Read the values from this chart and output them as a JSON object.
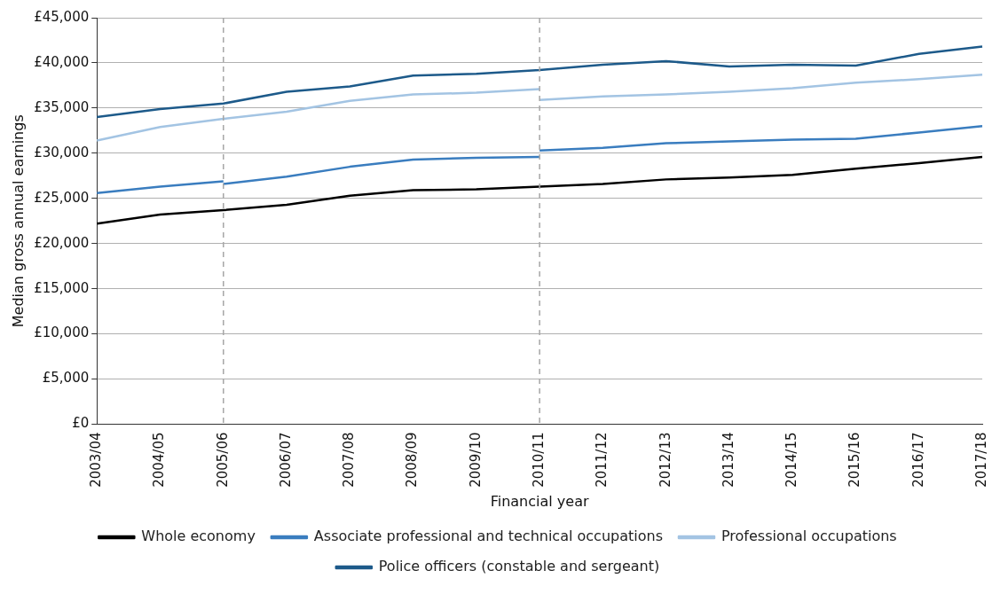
{
  "chart_data": {
    "type": "line",
    "xlabel": "Financial year",
    "ylabel": "Median gross annual earnings",
    "categories": [
      "2003/04",
      "2004/05",
      "2005/06",
      "2006/07",
      "2007/08",
      "2008/09",
      "2009/10",
      "2010/11",
      "2011/12",
      "2012/13",
      "2013/14",
      "2014/15",
      "2015/16",
      "2016/17",
      "2017/18"
    ],
    "series": [
      {
        "name": "Whole economy",
        "color": "#000000",
        "values": [
          22200,
          23200,
          23700,
          24300,
          25300,
          25900,
          26000,
          26300,
          26600,
          27100,
          27300,
          27600,
          28300,
          28900,
          29600
        ]
      },
      {
        "name": "Associate professional and technical occupations",
        "color": "#3a7dbf",
        "values": [
          25600,
          26300,
          26900,
          null,
          null,
          null,
          null,
          null,
          null,
          null,
          null,
          null,
          null,
          null,
          null
        ]
      },
      {
        "name": "Professional occupations",
        "color": "#a3c4e3",
        "values": [
          31400,
          32900,
          33800,
          34600,
          35800,
          36500,
          36700,
          37100,
          null,
          null,
          null,
          null,
          null,
          null,
          null
        ]
      },
      {
        "name": "Police officers (constable and sergeant)",
        "color": "#1d5a8a",
        "values": [
          34000,
          34900,
          35500,
          36800,
          37400,
          38600,
          38800,
          39200,
          39800,
          40200,
          39600,
          39800,
          39700,
          41000,
          41800
        ]
      },
      {
        "color": "#3a7dbf",
        "values": [
          null,
          null,
          26600,
          27400,
          28500,
          29300,
          29500,
          29600,
          null,
          null,
          null,
          null,
          null,
          null,
          null
        ]
      },
      {
        "color": "#3a7dbf",
        "values": [
          null,
          null,
          null,
          null,
          null,
          null,
          null,
          30300,
          30600,
          31100,
          31300,
          31500,
          31600,
          32300,
          33000
        ]
      },
      {
        "color": "#a3c4e3",
        "values": [
          null,
          null,
          null,
          null,
          null,
          null,
          null,
          35900,
          36300,
          36500,
          36800,
          37200,
          37800,
          38200,
          38700
        ]
      }
    ],
    "ylim": [
      0,
      45000
    ],
    "yticks": [
      {
        "value": 0,
        "label": "£0"
      },
      {
        "value": 5000,
        "label": "£5,000"
      },
      {
        "value": 10000,
        "label": "£10,000"
      },
      {
        "value": 15000,
        "label": "£15,000"
      },
      {
        "value": 20000,
        "label": "£20,000"
      },
      {
        "value": 25000,
        "label": "£25,000"
      },
      {
        "value": 30000,
        "label": "£30,000"
      },
      {
        "value": 35000,
        "label": "£35,000"
      },
      {
        "value": 40000,
        "label": "£40,000"
      },
      {
        "value": 45000,
        "label": "£45,000"
      }
    ],
    "ref_lines": [
      {
        "axis": "x",
        "value": "2005/06",
        "color": "#a6a6a6",
        "line_style": "dashed"
      },
      {
        "axis": "x",
        "value": "2010/11",
        "color": "#a6a6a6",
        "line_style": "dashed"
      }
    ],
    "grid": "y",
    "legend": "bottom",
    "marker": "none",
    "line_style": "solid"
  }
}
